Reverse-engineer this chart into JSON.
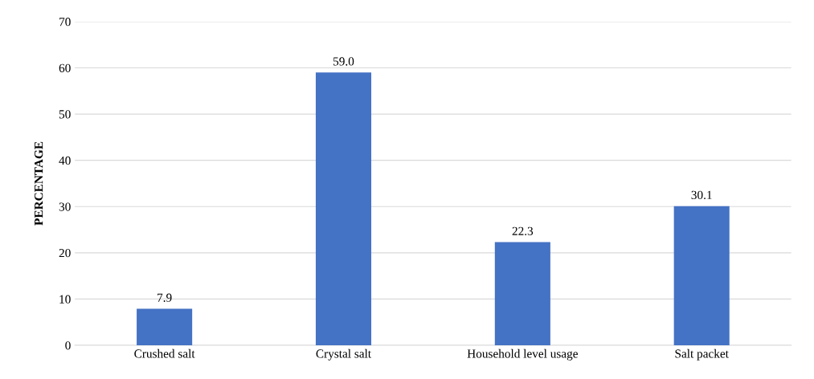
{
  "chart_data": {
    "type": "bar",
    "ylabel": "PERCENTAGE",
    "categories": [
      "Crushed salt",
      "Crystal salt",
      "Household level usage",
      "Salt packet"
    ],
    "values": [
      7.9,
      59.0,
      22.3,
      30.1
    ],
    "color": "#4472c4",
    "ylim": [
      0,
      70
    ],
    "yticks": [
      0,
      10,
      20,
      30,
      40,
      50,
      60,
      70
    ],
    "value_labels": [
      "7.9",
      "59.0",
      "22.3",
      "30.1"
    ],
    "grid": "y"
  }
}
